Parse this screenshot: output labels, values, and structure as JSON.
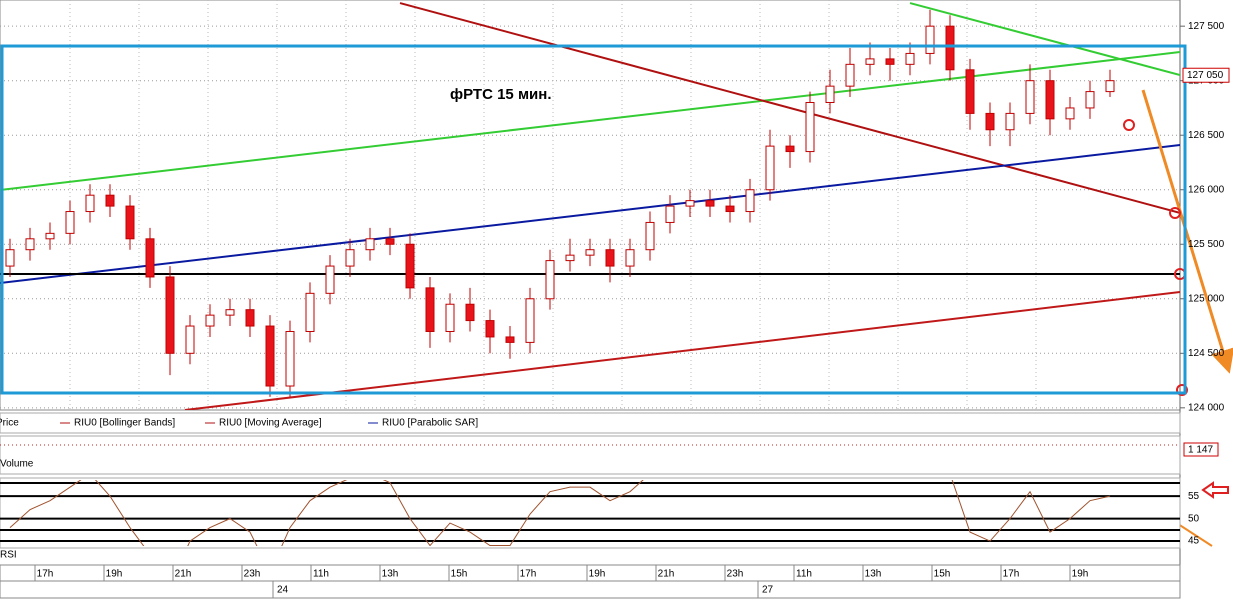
{
  "chart_data": {
    "type": "candlestick",
    "title": "фРТС   15 мин.",
    "up_color": "#ffffff",
    "down_color": "#e8141b",
    "outline_color": "#c00000",
    "open": [
      125300,
      125450,
      125550,
      125600,
      125800,
      125950,
      125850,
      125550,
      125200,
      124500,
      124750,
      124850,
      124900,
      124750,
      124200,
      124700,
      125050,
      125300,
      125450,
      125550,
      125500,
      125100,
      124700,
      124950,
      124800,
      124650,
      124600,
      125000,
      125350,
      125400,
      125450,
      125300,
      125450,
      125700,
      125850,
      125900,
      125850,
      125800,
      126000,
      126400,
      126350,
      126800,
      126950,
      127150,
      127200,
      127150,
      127250,
      127500,
      127100,
      126700,
      126550,
      126700,
      127000,
      126650,
      126750,
      126900
    ],
    "high": [
      125550,
      125650,
      125700,
      125900,
      126050,
      126050,
      125950,
      125650,
      125300,
      124850,
      124950,
      125000,
      125000,
      124850,
      124800,
      125150,
      125400,
      125550,
      125650,
      125650,
      125600,
      125200,
      125050,
      125100,
      124900,
      124750,
      125100,
      125450,
      125550,
      125550,
      125550,
      125550,
      125800,
      125950,
      126000,
      126000,
      125950,
      126100,
      126550,
      126500,
      126900,
      127100,
      127300,
      127350,
      127300,
      127350,
      127650,
      127600,
      127200,
      126800,
      126800,
      127150,
      127100,
      126850,
      127000,
      127100
    ],
    "low": [
      125200,
      125350,
      125450,
      125500,
      125700,
      125750,
      125450,
      125100,
      124300,
      124400,
      124650,
      124750,
      124650,
      124100,
      124100,
      124600,
      124950,
      125200,
      125350,
      125400,
      125000,
      124550,
      124600,
      124700,
      124500,
      124450,
      124500,
      124900,
      125250,
      125300,
      125150,
      125200,
      125350,
      125600,
      125750,
      125750,
      125700,
      125700,
      125900,
      126200,
      126250,
      126700,
      126850,
      127050,
      127000,
      127050,
      127150,
      127000,
      126550,
      126400,
      126400,
      126600,
      126500,
      126550,
      126650,
      126850
    ],
    "close": [
      125450,
      125550,
      125600,
      125800,
      125950,
      125850,
      125550,
      125200,
      124500,
      124750,
      124850,
      124900,
      124750,
      124200,
      124700,
      125050,
      125300,
      125450,
      125550,
      125500,
      125100,
      124700,
      124950,
      124800,
      124650,
      124600,
      125000,
      125350,
      125400,
      125450,
      125300,
      125450,
      125700,
      125850,
      125900,
      125850,
      125800,
      126000,
      126400,
      126350,
      126800,
      126950,
      127150,
      127200,
      127150,
      127250,
      127500,
      127100,
      126700,
      126550,
      126700,
      127000,
      126650,
      126750,
      126900,
      127000
    ],
    "ylim": [
      123980,
      127740
    ],
    "yticks": [
      {
        "value": 124000,
        "label": "124 000"
      },
      {
        "value": 124500,
        "label": "124 500"
      },
      {
        "value": 125000,
        "label": "125 000"
      },
      {
        "value": 125500,
        "label": "125 500"
      },
      {
        "value": 126000,
        "label": "126 000"
      },
      {
        "value": 126500,
        "label": "126 500"
      },
      {
        "value": 127000,
        "label": "127 000"
      },
      {
        "value": 127500,
        "label": "127 500"
      }
    ],
    "current_price": {
      "value": 127050,
      "label": "127 050"
    },
    "trendlines": [
      {
        "color": "#33cc33",
        "x": [
          -0.5,
          58.5
        ],
        "y": [
          125998,
          127263
        ]
      },
      {
        "color": "#33cc33",
        "x": [
          45,
          58.5
        ],
        "y": [
          127712,
          127052
        ]
      },
      {
        "color": "#b01010",
        "x": [
          19.5,
          58.5
        ],
        "y": [
          127712,
          125787
        ]
      },
      {
        "color": "#0a1aa0",
        "x": [
          -0.5,
          58.5
        ],
        "y": [
          125145,
          126410
        ]
      },
      {
        "color": "#c01818",
        "x": [
          8.75,
          58.5
        ],
        "y": [
          123980,
          125062
        ]
      },
      {
        "color": "#000000",
        "x": [
          -0.5,
          58.5
        ],
        "y": [
          125227,
          125227
        ]
      }
    ],
    "box": {
      "color": "#1e9ad6",
      "y": [
        124136,
        127318
      ]
    },
    "legend": [
      "Price",
      "RIU0 [Bollinger Bands]",
      "RIU0 [Moving Average]",
      "RIU0 [Parabolic SAR]"
    ],
    "volume_label": "Volume",
    "volume_value": {
      "value": 1147,
      "label": "1 147"
    },
    "rsi_label": "RSI",
    "rsi_color": "#a0522d",
    "rsi": [
      48,
      52,
      54,
      57,
      60,
      55,
      48,
      42,
      35,
      45,
      48,
      50,
      47,
      38,
      48,
      54,
      57,
      59,
      60,
      58,
      50,
      44,
      49,
      47,
      44,
      44,
      51,
      56,
      57,
      57,
      54,
      56,
      60,
      62,
      62,
      60,
      59,
      62,
      66,
      64,
      68,
      70,
      70,
      70,
      68,
      69,
      72,
      60,
      47,
      45,
      50,
      56,
      47,
      50,
      54,
      55
    ],
    "rsi_ylim": [
      43.9,
      58.6
    ],
    "rsi_yticks": [
      45,
      50,
      55
    ],
    "time_labels": [
      "17h",
      "19h",
      "21h",
      "23h",
      "11h",
      "13h",
      "15h",
      "17h",
      "19h",
      "21h",
      "23h",
      "11h",
      "13h",
      "15h",
      "17h",
      "19h"
    ],
    "dates": [
      "24",
      "27"
    ]
  }
}
